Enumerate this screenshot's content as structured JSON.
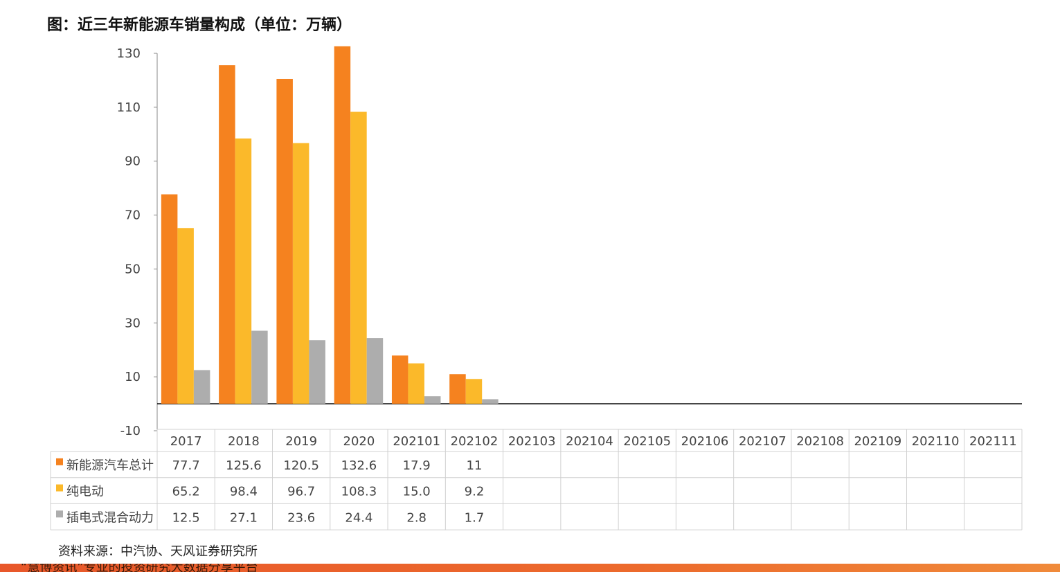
{
  "title": "图：近三年新能源车销量构成（单位：万辆）",
  "source": "资料来源：中汽协、天风证券研究所",
  "footer_text": "“慧博资讯”专业的投资研究大数据分享平台",
  "colors": {
    "total": "#F5821F",
    "bev": "#FBB92A",
    "phev": "#ADADAD",
    "grid": "#D0D0D0",
    "axis": "#111111"
  },
  "chart_data": {
    "type": "bar",
    "categories": [
      "2017",
      "2018",
      "2019",
      "2020",
      "202101",
      "202102",
      "202103",
      "202104",
      "202105",
      "202106",
      "202107",
      "202108",
      "202109",
      "202110",
      "202111"
    ],
    "y_ticks": [
      "130",
      "110",
      "90",
      "70",
      "50",
      "30",
      "10",
      "-10"
    ],
    "ylim": [
      -10,
      130
    ],
    "legend_position": "table",
    "series": [
      {
        "name": "新能源汽车总计",
        "color": "#F5821F",
        "values": [
          77.7,
          125.6,
          120.5,
          132.6,
          17.9,
          11,
          null,
          null,
          null,
          null,
          null,
          null,
          null,
          null,
          null
        ],
        "labels": [
          "77.7",
          "125.6",
          "120.5",
          "132.6",
          "17.9",
          "11",
          "",
          "",
          "",
          "",
          "",
          "",
          "",
          "",
          ""
        ]
      },
      {
        "name": "纯电动",
        "color": "#FBB92A",
        "values": [
          65.2,
          98.4,
          96.7,
          108.3,
          15.0,
          9.2,
          null,
          null,
          null,
          null,
          null,
          null,
          null,
          null,
          null
        ],
        "labels": [
          "65.2",
          "98.4",
          "96.7",
          "108.3",
          "15.0",
          "9.2",
          "",
          "",
          "",
          "",
          "",
          "",
          "",
          "",
          ""
        ]
      },
      {
        "name": "插电式混合动力",
        "color": "#ADADAD",
        "values": [
          12.5,
          27.1,
          23.6,
          24.4,
          2.8,
          1.7,
          null,
          null,
          null,
          null,
          null,
          null,
          null,
          null,
          null
        ],
        "labels": [
          "12.5",
          "27.1",
          "23.6",
          "24.4",
          "2.8",
          "1.7",
          "",
          "",
          "",
          "",
          "",
          "",
          "",
          "",
          ""
        ]
      }
    ]
  }
}
